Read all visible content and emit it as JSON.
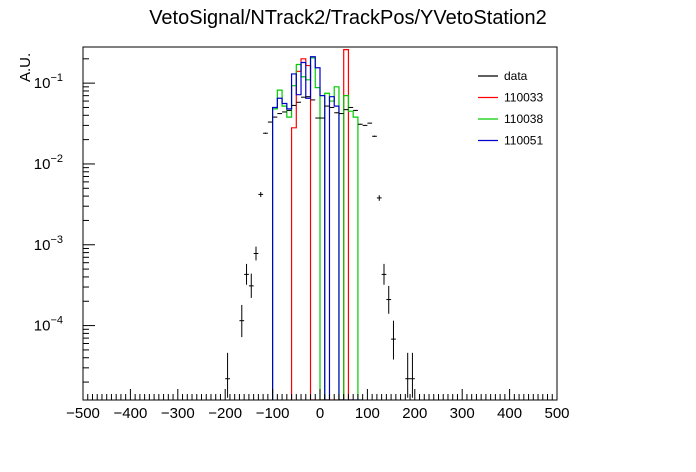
{
  "chart_data": {
    "type": "histogram",
    "title": "VetoSignal/NTrack2/TrackPos/YVetoStation2",
    "ylabel": "A.U.",
    "xlabel": "",
    "xlim": [
      -500,
      500
    ],
    "ylim": [
      1.2e-05,
      0.28
    ],
    "yscale": "log",
    "grid": false,
    "legend_position": "top-right",
    "x_ticks": [
      "−500",
      "−400",
      "−300",
      "−200",
      "−100",
      "0",
      "100",
      "200",
      "300",
      "400",
      "500"
    ],
    "y_ticks": [
      {
        "value": 0.0001,
        "base": "10",
        "exp": "−4"
      },
      {
        "value": 0.001,
        "base": "10",
        "exp": "−3"
      },
      {
        "value": 0.01,
        "base": "10",
        "exp": "−2"
      },
      {
        "value": 0.1,
        "base": "10",
        "exp": "−1"
      }
    ],
    "bin_width": 10,
    "series": [
      {
        "name": "data",
        "color": "#000000",
        "style": "points-with-errors",
        "points": [
          {
            "x": -195,
            "y": 2.2e-05,
            "lo": 1.28e-05,
            "hi": 4.6e-05
          },
          {
            "x": -165,
            "y": 0.000115,
            "lo": 7.2e-05,
            "hi": 0.00018
          },
          {
            "x": -155,
            "y": 0.00043,
            "lo": 0.00032,
            "hi": 0.00058
          },
          {
            "x": -145,
            "y": 0.00031,
            "lo": 0.00022,
            "hi": 0.00044
          },
          {
            "x": -135,
            "y": 0.00078,
            "lo": 0.00064,
            "hi": 0.00095
          },
          {
            "x": -125,
            "y": 0.0042,
            "lo": 0.0039,
            "hi": 0.0045
          },
          {
            "x": -115,
            "y": 0.024,
            "lo": 0.0236,
            "hi": 0.0244
          },
          {
            "x": -105,
            "y": 0.033,
            "lo": 0.0325,
            "hi": 0.0335
          },
          {
            "x": -95,
            "y": 0.038,
            "lo": 0.0375,
            "hi": 0.0385
          },
          {
            "x": -85,
            "y": 0.042,
            "lo": 0.0415,
            "hi": 0.0425
          },
          {
            "x": -75,
            "y": 0.044,
            "lo": 0.0435,
            "hi": 0.0445
          },
          {
            "x": -65,
            "y": 0.046,
            "lo": 0.0455,
            "hi": 0.0465
          },
          {
            "x": -55,
            "y": 0.053,
            "lo": 0.0525,
            "hi": 0.0535
          },
          {
            "x": -45,
            "y": 0.058,
            "lo": 0.0575,
            "hi": 0.0585
          },
          {
            "x": -35,
            "y": 0.067,
            "lo": 0.0665,
            "hi": 0.0675
          },
          {
            "x": -25,
            "y": 0.068,
            "lo": 0.0675,
            "hi": 0.0685
          },
          {
            "x": -15,
            "y": 0.062,
            "lo": 0.0615,
            "hi": 0.0625
          },
          {
            "x": -5,
            "y": 0.037,
            "lo": 0.0366,
            "hi": 0.0374
          },
          {
            "x": 5,
            "y": 0.037,
            "lo": 0.0366,
            "hi": 0.0374
          },
          {
            "x": 15,
            "y": 0.052,
            "lo": 0.0515,
            "hi": 0.0525
          },
          {
            "x": 25,
            "y": 0.05,
            "lo": 0.0495,
            "hi": 0.0505
          },
          {
            "x": 35,
            "y": 0.043,
            "lo": 0.0425,
            "hi": 0.0435
          },
          {
            "x": 45,
            "y": 0.042,
            "lo": 0.0415,
            "hi": 0.0425
          },
          {
            "x": 55,
            "y": 0.047,
            "lo": 0.0465,
            "hi": 0.0475
          },
          {
            "x": 65,
            "y": 0.05,
            "lo": 0.0495,
            "hi": 0.0505
          },
          {
            "x": 75,
            "y": 0.046,
            "lo": 0.0455,
            "hi": 0.0465
          },
          {
            "x": 85,
            "y": 0.031,
            "lo": 0.0306,
            "hi": 0.0314
          },
          {
            "x": 95,
            "y": 0.03,
            "lo": 0.0296,
            "hi": 0.0304
          },
          {
            "x": 105,
            "y": 0.032,
            "lo": 0.0316,
            "hi": 0.0324
          },
          {
            "x": 115,
            "y": 0.022,
            "lo": 0.0216,
            "hi": 0.0224
          },
          {
            "x": 125,
            "y": 0.0038,
            "lo": 0.0035,
            "hi": 0.0041
          },
          {
            "x": 135,
            "y": 0.00043,
            "lo": 0.00032,
            "hi": 0.00058
          },
          {
            "x": 145,
            "y": 0.00021,
            "lo": 0.00014,
            "hi": 0.00031
          },
          {
            "x": 155,
            "y": 6.8e-05,
            "lo": 3.8e-05,
            "hi": 0.000115
          },
          {
            "x": 185,
            "y": 2.2e-05,
            "lo": 1.28e-05,
            "hi": 4.6e-05
          },
          {
            "x": 195,
            "y": 2.2e-05,
            "lo": 1.28e-05,
            "hi": 4.6e-05
          }
        ]
      },
      {
        "name": "110033",
        "color": "#ff0000",
        "style": "step",
        "bins": [
          [
            -60,
            0.028
          ],
          [
            -50,
            0.14
          ],
          [
            -40,
            0.2
          ],
          [
            -30,
            0.165
          ],
          [
            -20,
            0.0
          ],
          [
            -10,
            0.0
          ],
          [
            0,
            0.0
          ],
          [
            10,
            0.0
          ],
          [
            20,
            0.0
          ],
          [
            30,
            0.0
          ],
          [
            40,
            0.0
          ],
          [
            50,
            0.26
          ],
          [
            60,
            0.0
          ]
        ]
      },
      {
        "name": "110038",
        "color": "#00cc00",
        "style": "step",
        "bins": [
          [
            -100,
            0.048
          ],
          [
            -90,
            0.082
          ],
          [
            -80,
            0.052
          ],
          [
            -70,
            0.038
          ],
          [
            -60,
            0.093
          ],
          [
            -50,
            0.17
          ],
          [
            -40,
            0.12
          ],
          [
            -30,
            0.11
          ],
          [
            -20,
            0.205
          ],
          [
            -10,
            0.088
          ],
          [
            0,
            0.0
          ],
          [
            10,
            0.075
          ],
          [
            20,
            0.06
          ],
          [
            30,
            0.09
          ],
          [
            40,
            0.0
          ],
          [
            50,
            0.07
          ],
          [
            60,
            0.045
          ],
          [
            70,
            0.038
          ]
        ]
      },
      {
        "name": "110051",
        "color": "#0000cc",
        "style": "step",
        "bins": [
          [
            -100,
            0.05
          ],
          [
            -90,
            0.065
          ],
          [
            -80,
            0.056
          ],
          [
            -70,
            0.048
          ],
          [
            -60,
            0.13
          ],
          [
            -50,
            0.072
          ],
          [
            -40,
            0.18
          ],
          [
            -30,
            0.065
          ],
          [
            -20,
            0.212
          ],
          [
            -10,
            0.155
          ],
          [
            0,
            0.07
          ],
          [
            10,
            0.0
          ],
          [
            20,
            0.068
          ],
          [
            30,
            0.052
          ],
          [
            40,
            0.0
          ],
          [
            50,
            0.0
          ],
          [
            60,
            0.0
          ],
          [
            70,
            0.0
          ],
          [
            80,
            0.0
          ]
        ]
      }
    ]
  }
}
